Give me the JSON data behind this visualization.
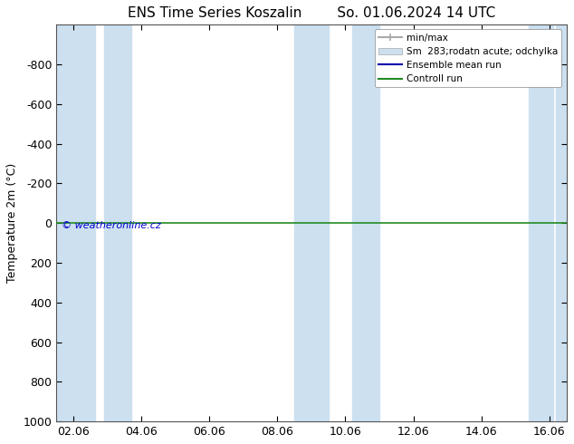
{
  "title_left": "ENS Time Series Koszalin",
  "title_right": "So. 01.06.2024 14 UTC",
  "ylabel": "Temperature 2m (°C)",
  "ylim": [
    1000,
    -1000
  ],
  "yticks": [
    -800,
    -600,
    -400,
    -200,
    0,
    200,
    400,
    600,
    800,
    1000
  ],
  "xtick_labels": [
    "02.06",
    "04.06",
    "06.06",
    "08.06",
    "10.06",
    "12.06",
    "14.06",
    "16.06"
  ],
  "xtick_positions": [
    0,
    2,
    4,
    6,
    8,
    10,
    12,
    14
  ],
  "xlim": [
    -0.5,
    14.5
  ],
  "blue_bands": [
    [
      -0.5,
      0.5
    ],
    [
      1.0,
      1.8
    ],
    [
      6.5,
      7.5
    ],
    [
      8.5,
      9.5
    ],
    [
      13.5,
      14.5
    ],
    [
      14.5,
      14.5
    ]
  ],
  "band_color": "#cce0f0",
  "green_line_y": 0,
  "green_line_color": "#228B22",
  "blue_line_y": 0,
  "blue_line_color": "#0000cc",
  "copyright_text": "© weatheronline.cz",
  "copyright_color": "#0000cc",
  "legend_labels": [
    "min/max",
    "Sm  283;rodatn acute; odchylka",
    "Ensemble mean run",
    "Controll run"
  ],
  "minmax_color": "#aaaaaa",
  "sm_color": "#cce0f0",
  "ensemble_color": "#0000aa",
  "control_color": "#228B22",
  "background_color": "#ffffff",
  "title_fontsize": 11,
  "axis_fontsize": 9,
  "tick_fontsize": 9
}
